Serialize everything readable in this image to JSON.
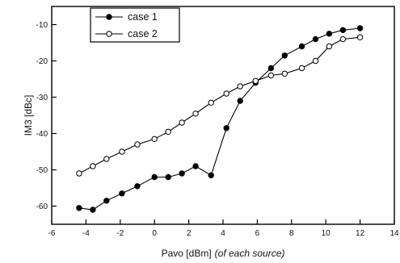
{
  "chart_data": {
    "type": "line",
    "xlabel": "Pavo [dBm]",
    "xlabel_note": "(of each source)",
    "ylabel": "IM3 [dBc]",
    "xlim": [
      -6,
      14
    ],
    "ylim": [
      -65,
      -5
    ],
    "x_ticks": [
      -6,
      -4,
      -2,
      0,
      2,
      4,
      6,
      8,
      10,
      12,
      14
    ],
    "y_ticks": [
      -60,
      -50,
      -40,
      -30,
      -20,
      -10
    ],
    "grid": false,
    "legend_position": "top-left",
    "series": [
      {
        "name": "case 1",
        "marker": "filled-circle",
        "color": "#000000",
        "x": [
          -4.4,
          -3.6,
          -2.8,
          -1.9,
          -1.0,
          0.0,
          0.8,
          1.6,
          2.4,
          3.3,
          4.2,
          5.0,
          5.9,
          6.8,
          7.6,
          8.6,
          9.4,
          10.2,
          11.0,
          12.0
        ],
        "y": [
          -60.5,
          -61,
          -58.5,
          -56.5,
          -54.5,
          -52,
          -52,
          -51,
          -49,
          -51.5,
          -38.5,
          -31,
          -26,
          -22,
          -18.5,
          -16,
          -14,
          -12.5,
          -11.5,
          -11
        ]
      },
      {
        "name": "case 2",
        "marker": "open-circle",
        "color": "#000000",
        "x": [
          -4.4,
          -3.6,
          -2.8,
          -1.9,
          -1.0,
          0.0,
          0.8,
          1.6,
          2.4,
          3.3,
          4.2,
          5.0,
          5.9,
          6.8,
          7.6,
          8.6,
          9.4,
          10.2,
          11.0,
          12.0
        ],
        "y": [
          -51,
          -49,
          -47,
          -45,
          -43,
          -41.5,
          -39.5,
          -37,
          -34.5,
          -31.5,
          -29,
          -27,
          -25.5,
          -24,
          -23.5,
          -22,
          -20,
          -16,
          -14,
          -13.5
        ]
      }
    ]
  }
}
